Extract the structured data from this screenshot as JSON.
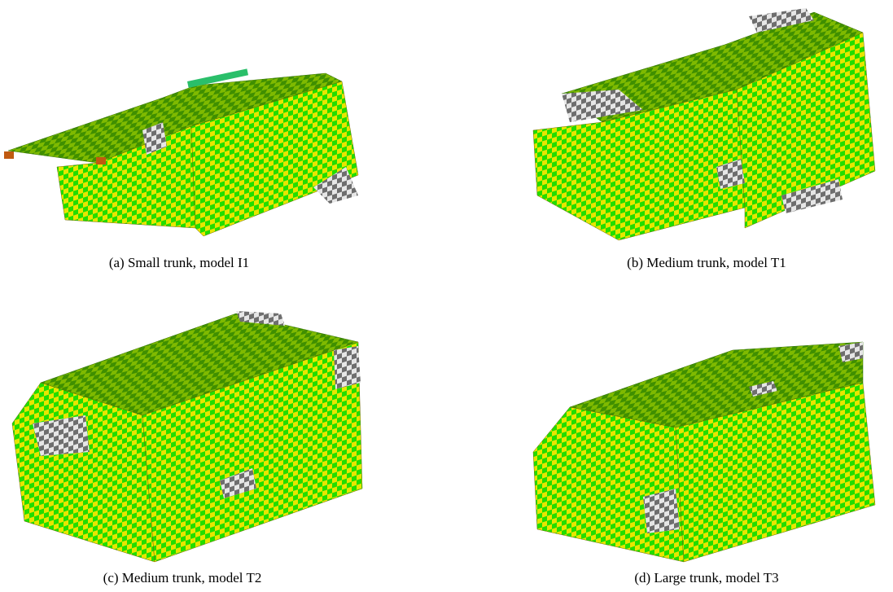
{
  "figures": [
    {
      "label": "(a)",
      "caption": "Small trunk, model I1"
    },
    {
      "label": "(b)",
      "caption": "Medium trunk, model T1"
    },
    {
      "label": "(c)",
      "caption": "Medium trunk, model T2"
    },
    {
      "label": "(d)",
      "caption": "Large trunk, model T3"
    }
  ]
}
